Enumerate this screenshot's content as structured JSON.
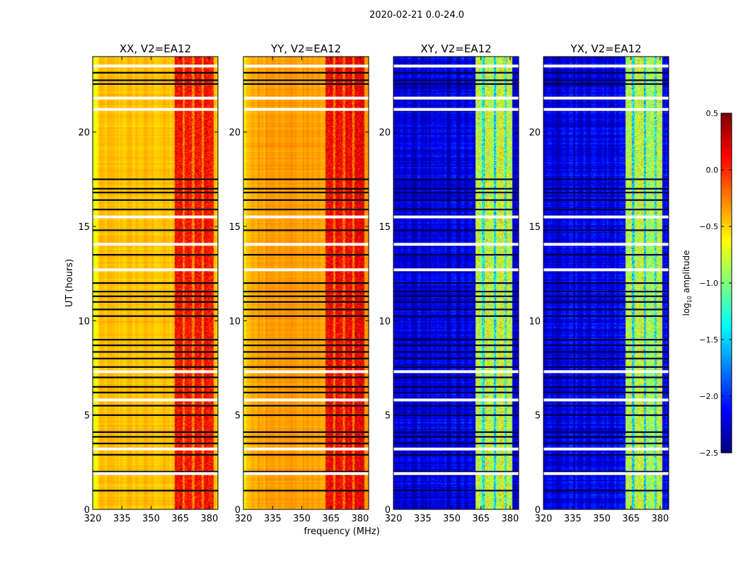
{
  "chart_data": {
    "type": "heatmap",
    "title": "2020-02-21 0.0-24.0",
    "xlabel": "frequency (MHz)",
    "ylabel": "UT (hours)",
    "xlim": [
      320,
      384.4
    ],
    "ylim": [
      0,
      24
    ],
    "xticks": [
      320,
      335,
      350,
      365,
      380
    ],
    "yticks": [
      0,
      5,
      10,
      15,
      20
    ],
    "panels": [
      {
        "title": "XX, V2=EA12",
        "background_log_amp": -0.45,
        "edge_log_amp": -0.75,
        "band_mhz": [
          362,
          382
        ],
        "band_log_amp": 0.1,
        "band_gaps_mhz": [
          366.5,
          371.5,
          376.5
        ]
      },
      {
        "title": "YY, V2=EA12",
        "background_log_amp": -0.35,
        "edge_log_amp": -0.6,
        "band_mhz": [
          362,
          382
        ],
        "band_log_amp": 0.15,
        "band_gaps_mhz": [
          366.5,
          371.5,
          376.5
        ]
      },
      {
        "title": "XY, V2=EA12",
        "background_log_amp": -2.2,
        "edge_log_amp": -2.3,
        "band_mhz": [
          362,
          381
        ],
        "band_log_amp": -0.8,
        "band_gaps_mhz": [
          366,
          372,
          377.5
        ]
      },
      {
        "title": "YX, V2=EA12",
        "background_log_amp": -2.2,
        "edge_log_amp": -2.3,
        "band_mhz": [
          362,
          381
        ],
        "band_log_amp": -0.8,
        "band_gaps_mhz": [
          366,
          372,
          377.5
        ]
      }
    ],
    "flagged_ut_hours": [
      1.0,
      2.0,
      2.9,
      3.5,
      3.85,
      4.1,
      5.0,
      5.5,
      6.2,
      6.5,
      7.0,
      7.55,
      8.0,
      8.35,
      8.7,
      9.0,
      10.25,
      10.6,
      11.0,
      11.3,
      11.55,
      12.0,
      13.5,
      14.8,
      15.9,
      16.4,
      16.8,
      17.0,
      17.5,
      22.55,
      22.75,
      23.15
    ],
    "gap_ut_hours": [
      1.9,
      3.2,
      5.8,
      7.3,
      12.7,
      14.05,
      15.5,
      21.2,
      21.8,
      23.5
    ],
    "colorbar": {
      "label": "log10 amplitude",
      "label_main": "log",
      "label_sub": "10",
      "label_rest": " amplitude",
      "range": [
        -2.5,
        0.5
      ],
      "ticks": [
        "0.5",
        "0.0",
        "−0.5",
        "−1.0",
        "−1.5",
        "−2.0",
        "−2.5"
      ],
      "tick_values": [
        0.5,
        0.0,
        -0.5,
        -1.0,
        -1.5,
        -2.0,
        -2.5
      ],
      "colormap": "jet"
    }
  }
}
